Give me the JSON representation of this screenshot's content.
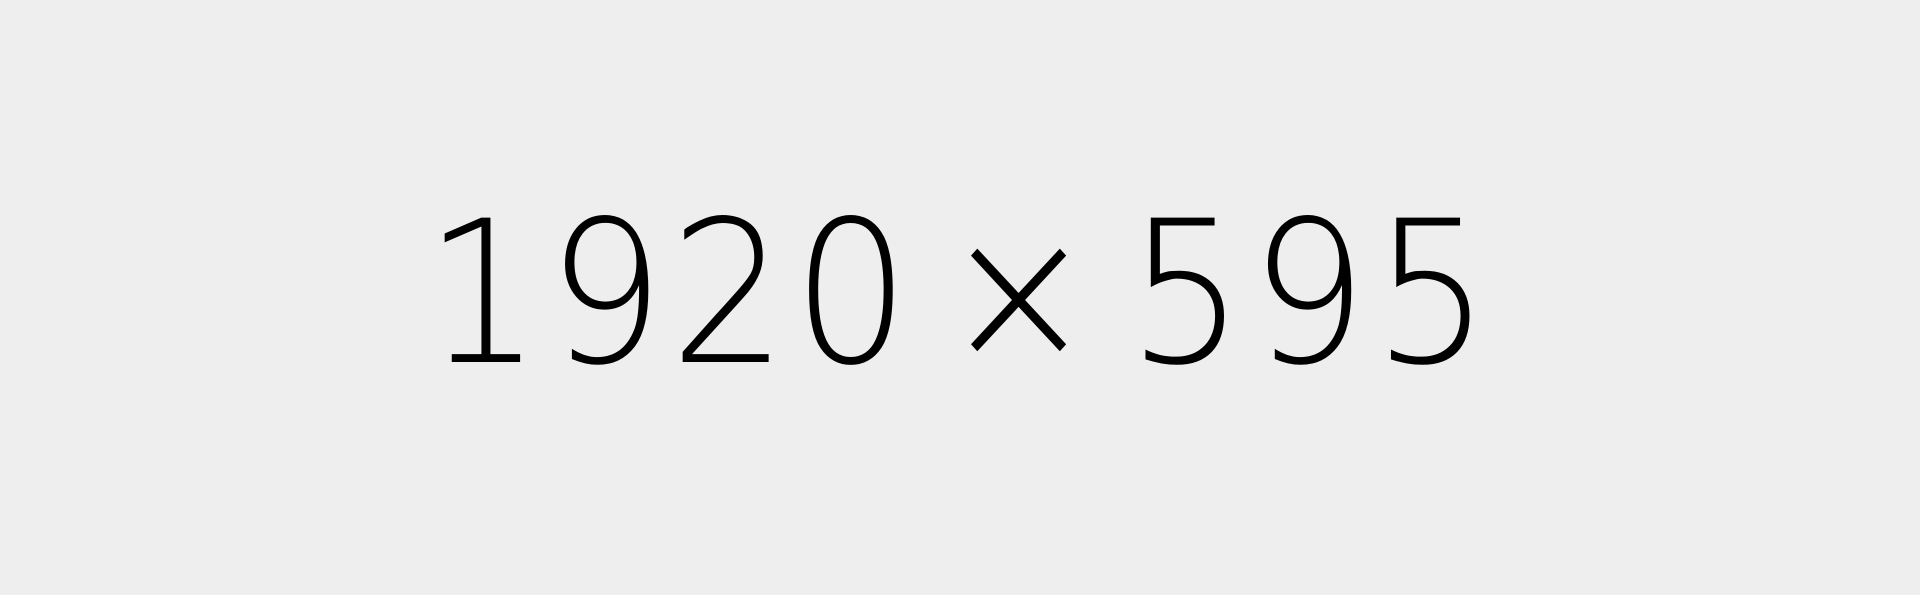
{
  "placeholder": {
    "width_label": "1920",
    "separator": "×",
    "height_label": "595",
    "background_color": "#eeeeee",
    "text_color": "#000000"
  }
}
